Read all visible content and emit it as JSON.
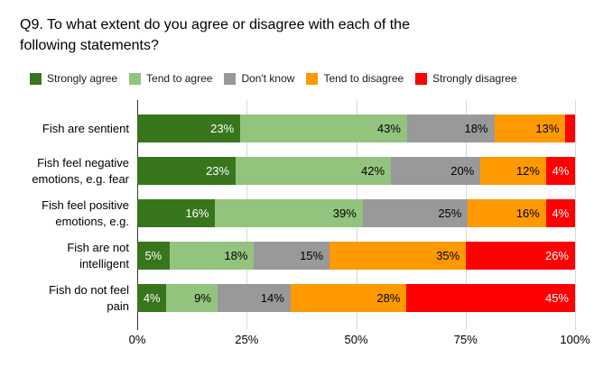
{
  "title": "Q9. To what extent do you agree or disagree with each of the\nfollowing statements?",
  "colors": {
    "strongly_agree": "#38761d",
    "tend_to_agree": "#93c47d",
    "dont_know": "#999999",
    "tend_to_disagree": "#ff9900",
    "strongly_disagree": "#ff0000",
    "gridline": "#d9d9d9",
    "axis_line": "#333333",
    "background": "#ffffff"
  },
  "chart_data": {
    "type": "bar",
    "orientation": "horizontal",
    "stacked": true,
    "grid": true,
    "legend_position": "top",
    "title": "Q9. To what extent do you agree or disagree with each of the following statements?",
    "xlabel": "",
    "ylabel": "",
    "xlim": [
      0,
      100
    ],
    "x_ticks": [
      "0%",
      "25%",
      "50%",
      "75%",
      "100%"
    ],
    "categories": [
      "Fish are sentient",
      "Fish feel negative emotions, e.g. fear",
      "Fish feel positive emotions, e.g.",
      "Fish are not intelligent",
      "Fish do not feel pain"
    ],
    "categories_display": [
      "Fish are sentient",
      "Fish feel negative\nemotions, e.g. fear",
      "Fish feel positive\nemotions, e.g.",
      "Fish are not\nintelligent",
      "Fish do not feel\npain"
    ],
    "series": [
      {
        "name": "Strongly agree",
        "color": "#38761d",
        "text_color": "#ffffff",
        "values": [
          23,
          23,
          16,
          5,
          4
        ]
      },
      {
        "name": "Tend to agree",
        "color": "#93c47d",
        "text_color": "#000000",
        "values": [
          43,
          42,
          39,
          18,
          9
        ]
      },
      {
        "name": "Don't know",
        "color": "#999999",
        "text_color": "#000000",
        "values": [
          18,
          20,
          25,
          15,
          14
        ]
      },
      {
        "name": "Tend to disagree",
        "color": "#ff9900",
        "text_color": "#000000",
        "values": [
          13,
          12,
          16,
          35,
          28
        ]
      },
      {
        "name": "Strongly disagree",
        "color": "#ff0000",
        "text_color": "#ffffff",
        "values": [
          3,
          4,
          4,
          26,
          45
        ]
      }
    ],
    "data_labels": [
      [
        "23%",
        "43%",
        "18%",
        "13%",
        ""
      ],
      [
        "23%",
        "42%",
        "20%",
        "12%",
        "4%"
      ],
      [
        "16%",
        "39%",
        "25%",
        "16%",
        "4%"
      ],
      [
        "5%",
        "18%",
        "15%",
        "35%",
        "26%"
      ],
      [
        "4%",
        "9%",
        "14%",
        "28%",
        "45%"
      ]
    ]
  }
}
